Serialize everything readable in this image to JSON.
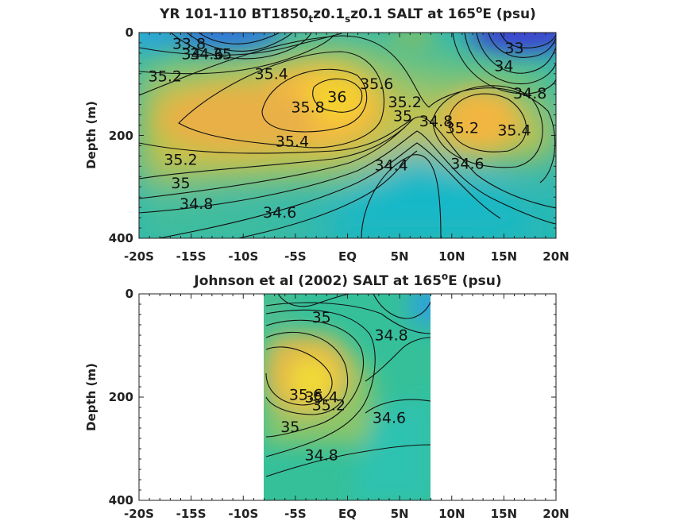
{
  "chart_data": [
    {
      "type": "heatmap",
      "title_parts": {
        "a": "YR 101-110 BT1850",
        "sub1": "t",
        "b": "z0.1",
        "sub2": "s",
        "c": "z0.1 SALT at 165",
        "sup": "o",
        "d": "E (psu)"
      },
      "ylabel": "Depth (m)",
      "xlim": [
        -20,
        20
      ],
      "ylim": [
        0,
        400
      ],
      "y_reversed": true,
      "x_ticks": [
        "-20S",
        "-15S",
        "-10S",
        "-5S",
        "EQ",
        "5N",
        "10N",
        "15N",
        "20N"
      ],
      "x_tick_values": [
        -20,
        -15,
        -10,
        -5,
        0,
        5,
        10,
        15,
        20
      ],
      "y_ticks": [
        "0",
        "200",
        "400"
      ],
      "y_tick_values": [
        0,
        200,
        400
      ],
      "data_extent_x": [
        -20,
        20
      ],
      "colormap": "parula",
      "contour_labels": [
        {
          "text": "33.8",
          "x": -15.2,
          "y": 32
        },
        {
          "text": "34",
          "x": -15.0,
          "y": 52
        },
        {
          "text": "34.6",
          "x": -13.5,
          "y": 52
        },
        {
          "text": "35",
          "x": -12.0,
          "y": 52
        },
        {
          "text": "35.2",
          "x": -17.5,
          "y": 95
        },
        {
          "text": "35.4",
          "x": -7.3,
          "y": 90
        },
        {
          "text": "36",
          "x": -1.0,
          "y": 135
        },
        {
          "text": "35.8",
          "x": -3.8,
          "y": 155
        },
        {
          "text": "35.6",
          "x": 2.8,
          "y": 110
        },
        {
          "text": "35.2",
          "x": 5.5,
          "y": 145
        },
        {
          "text": "35",
          "x": 5.3,
          "y": 172
        },
        {
          "text": "34.8",
          "x": 8.5,
          "y": 182
        },
        {
          "text": "35.2",
          "x": 11.0,
          "y": 195
        },
        {
          "text": "35.4",
          "x": 16.0,
          "y": 200
        },
        {
          "text": "35.4",
          "x": -5.3,
          "y": 222
        },
        {
          "text": "35.2",
          "x": -16.0,
          "y": 257
        },
        {
          "text": "35",
          "x": -16.0,
          "y": 303
        },
        {
          "text": "34.8",
          "x": -14.5,
          "y": 343
        },
        {
          "text": "34.6",
          "x": -6.5,
          "y": 360
        },
        {
          "text": "34.4",
          "x": 4.2,
          "y": 268
        },
        {
          "text": "34.6",
          "x": 11.5,
          "y": 265
        },
        {
          "text": "34.8",
          "x": 17.5,
          "y": 128
        },
        {
          "text": "33",
          "x": 16.0,
          "y": 40
        },
        {
          "text": "34",
          "x": 15.0,
          "y": 75
        }
      ]
    },
    {
      "type": "heatmap",
      "title_parts": {
        "a": "Johnson et al (2002) SALT at 165",
        "sup": "o",
        "d": "E (psu)"
      },
      "ylabel": "Depth (m)",
      "xlim": [
        -20,
        20
      ],
      "ylim": [
        0,
        400
      ],
      "y_reversed": true,
      "x_ticks": [
        "-20S",
        "-15S",
        "-10S",
        "-5S",
        "EQ",
        "5N",
        "10N",
        "15N",
        "20N"
      ],
      "x_tick_values": [
        -20,
        -15,
        -10,
        -5,
        0,
        5,
        10,
        15,
        20
      ],
      "y_ticks": [
        "0",
        "200",
        "400"
      ],
      "y_tick_values": [
        0,
        200,
        400
      ],
      "data_extent_x": [
        -8,
        8
      ],
      "colormap": "parula",
      "contour_labels": [
        {
          "text": "35",
          "x": -2.5,
          "y": 55
        },
        {
          "text": "34.8",
          "x": 4.2,
          "y": 90
        },
        {
          "text": "35.6",
          "x": -4.0,
          "y": 205
        },
        {
          "text": "35.4",
          "x": -2.5,
          "y": 210
        },
        {
          "text": "35.2",
          "x": -1.8,
          "y": 225
        },
        {
          "text": "35",
          "x": -5.5,
          "y": 268
        },
        {
          "text": "34.6",
          "x": 4.0,
          "y": 250
        },
        {
          "text": "34.8",
          "x": -2.5,
          "y": 322
        }
      ]
    }
  ]
}
